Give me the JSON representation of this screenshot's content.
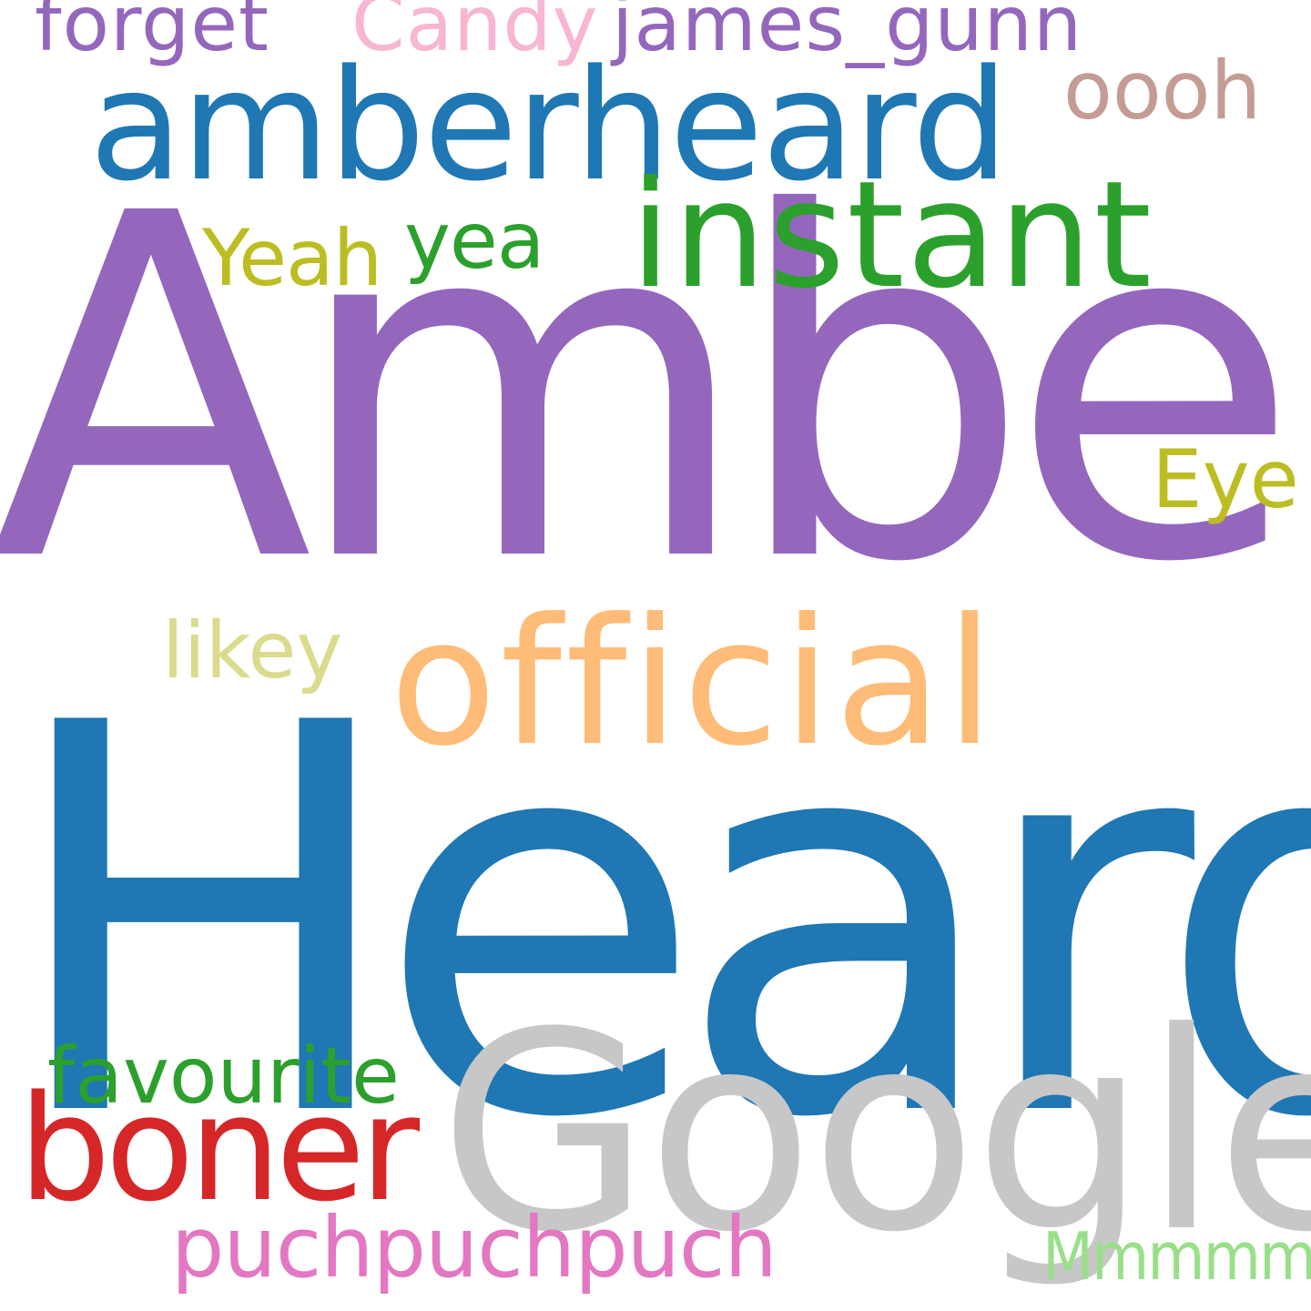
{
  "cloud": {
    "words": {
      "heard": {
        "text": "Heard",
        "color": "#1f77b4"
      },
      "amber": {
        "text": "Amber",
        "color": "#9467bd"
      },
      "google": {
        "text": "Google",
        "color": "#c7c7c7"
      },
      "official": {
        "text": "official",
        "color": "#ffbb78"
      },
      "amberheard": {
        "text": "amberheard",
        "color": "#1f77b4"
      },
      "instant": {
        "text": "instant",
        "color": "#2ca02c"
      },
      "boner": {
        "text": "boner",
        "color": "#d62728"
      },
      "puchpuchpuch": {
        "text": "puchpuchpuch",
        "color": "#e377c2"
      },
      "favourite": {
        "text": "favourite",
        "color": "#2ca02c"
      },
      "oooh": {
        "text": "oooh",
        "color": "#c49c94"
      },
      "eye": {
        "text": "Eye",
        "color": "#bcbd22"
      },
      "yeah": {
        "text": "Yeah",
        "color": "#bcbd22"
      },
      "yea": {
        "text": "yea",
        "color": "#2ca02c"
      },
      "likey": {
        "text": "likey",
        "color": "#dbdb8d"
      },
      "forget": {
        "text": "forget",
        "color": "#9467bd"
      },
      "candy": {
        "text": "Candy",
        "color": "#f7b6d2"
      },
      "james_gunn": {
        "text": "james_gunn",
        "color": "#9467bd"
      },
      "mmmmm": {
        "text": "Mmmmm",
        "color": "#98df8a"
      }
    }
  }
}
